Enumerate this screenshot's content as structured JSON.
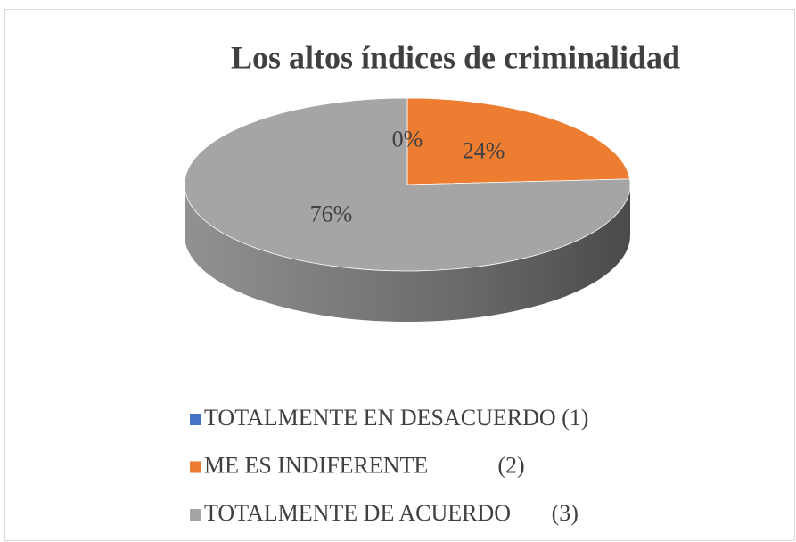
{
  "chart_data": {
    "type": "pie3d",
    "title": "Los altos índices de criminalidad",
    "categories": [
      "TOTALMENTE EN DESACUERDO (1)",
      "ME ES INDIFERENTE            (2)",
      "TOTALMENTE DE ACUERDO       (3)"
    ],
    "values": [
      0,
      24,
      76
    ],
    "value_labels": [
      "0%",
      "24%",
      "76%"
    ],
    "colors": [
      "#4472c4",
      "#ed7d31",
      "#a5a5a5"
    ],
    "legend": "bottom"
  }
}
